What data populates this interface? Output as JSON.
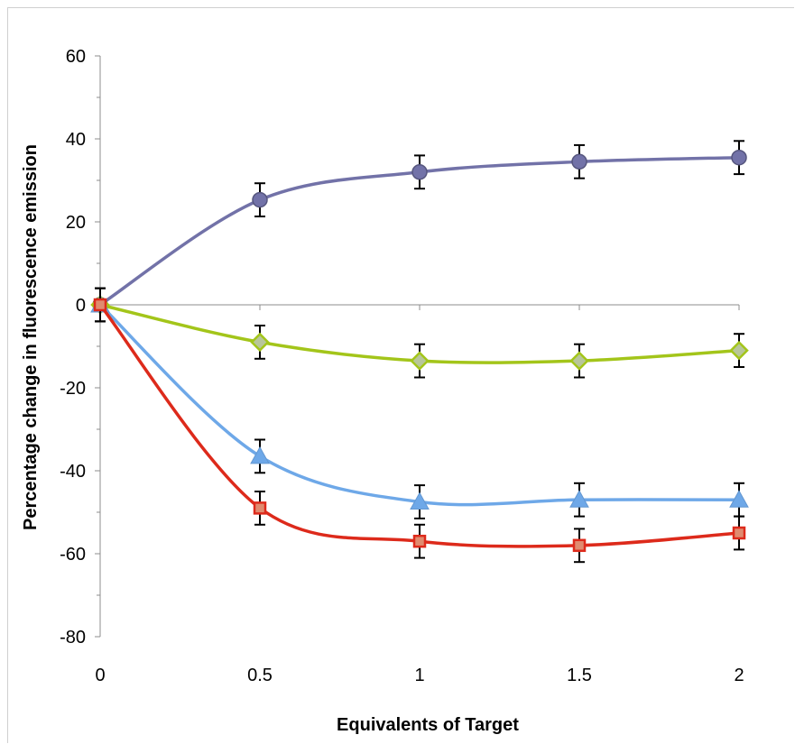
{
  "chart_data": {
    "type": "line",
    "title": "",
    "xlabel": "Equivalents of Target",
    "ylabel": "Percentage change in fluorescence emission",
    "x": [
      0,
      0.5,
      1,
      1.5,
      2
    ],
    "xticks": [
      "0",
      "0.5",
      "1",
      "1.5",
      "2"
    ],
    "xlim": [
      0,
      2
    ],
    "ylim": [
      -80,
      60
    ],
    "yticks": [
      "60",
      "40",
      "20",
      "0",
      "-20",
      "-40",
      "-60",
      "-80"
    ],
    "grid": false,
    "legend": "none",
    "series": [
      {
        "color": "#7272a8",
        "marker": "circle",
        "values": [
          0,
          25.3,
          32,
          34.5,
          35.5
        ],
        "error": [
          4,
          4,
          4,
          4,
          4
        ]
      },
      {
        "color": "#a3c51a",
        "marker": "diamond",
        "values": [
          0,
          -9,
          -13.5,
          -13.5,
          -11
        ],
        "error": [
          4,
          4,
          4,
          4,
          4
        ]
      },
      {
        "color": "#6ea8e8",
        "marker": "triangle",
        "values": [
          0,
          -36.5,
          -47.5,
          -47,
          -47
        ],
        "error": [
          4,
          4,
          4,
          4,
          4
        ]
      },
      {
        "color": "#dd2a1b",
        "marker": "square",
        "values": [
          0,
          -49,
          -57,
          -58,
          -55
        ],
        "error": [
          4,
          4,
          4,
          4,
          4
        ]
      }
    ]
  }
}
